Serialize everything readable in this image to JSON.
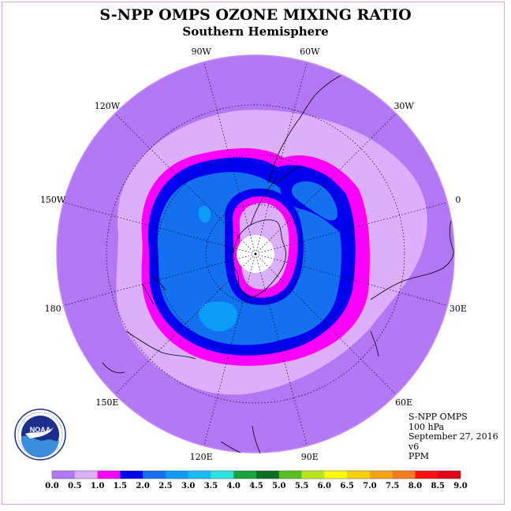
{
  "title": "S-NPP OMPS OZONE MIXING RATIO",
  "subtitle": "Southern Hemisphere",
  "longitude_labels": [
    "90W",
    "60W",
    "30W",
    "0",
    "30E",
    "60E",
    "90E",
    "120E",
    "150E",
    "180",
    "150W",
    "120W"
  ],
  "info": {
    "instrument": "S-NPP OMPS",
    "level": "100 hPa",
    "date": "September 27, 2016",
    "version": "v6",
    "units": "PPM"
  },
  "logo": {
    "name": "NOAA",
    "ring_text": "NATIONAL OCEANIC AND ATMOSPHERIC ADMINISTRATION · U.S. DEPARTMENT OF COMMERCE",
    "colors": {
      "sky": "#1d2f8c",
      "sea": "#3a8ee0",
      "bird": "#ffffff"
    }
  },
  "colorbar": {
    "labels": [
      "0.0",
      "0.5",
      "1.0",
      "1.5",
      "2.0",
      "2.5",
      "3.0",
      "3.5",
      "4.0",
      "4.5",
      "5.0",
      "5.5",
      "6.0",
      "6.5",
      "7.0",
      "7.5",
      "8.0",
      "8.5",
      "9.0"
    ],
    "colors": [
      "#b377f5",
      "#dcaffb",
      "#ff00ff",
      "#0000f0",
      "#1370ee",
      "#0c9cf7",
      "#1bb9f4",
      "#2ee4e0",
      "#17a43e",
      "#0b6f22",
      "#56c021",
      "#b8e61b",
      "#fbfd0b",
      "#f5d10d",
      "#f2a315",
      "#f47c1d",
      "#f91111",
      "#e0031a",
      "#8b5b3a"
    ]
  },
  "map_colors": {
    "c0": "#b377f5",
    "c05": "#dcaffb",
    "c1": "#ff00ff",
    "c15": "#0000f0",
    "c2": "#1370ee",
    "c25": "#0c9cf7",
    "pole": "#ffffff",
    "border": "#c58af7"
  }
}
